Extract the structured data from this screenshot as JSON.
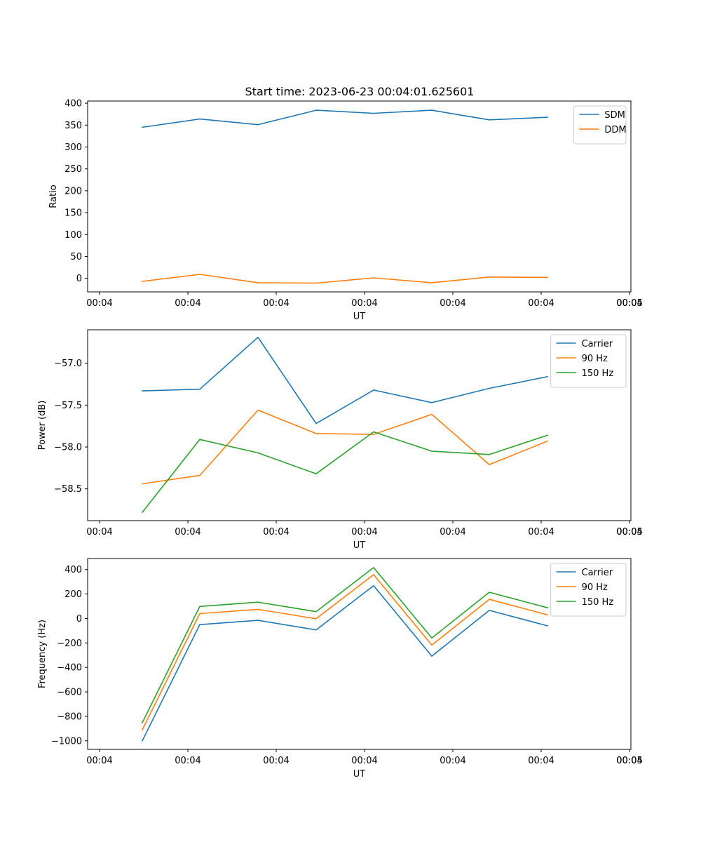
{
  "figure": {
    "title": "Start time: 2023-06-23 00:04:01.625601"
  },
  "chart_data": [
    {
      "type": "line",
      "xlabel": "UT",
      "ylabel": "Ratio",
      "x_tick_labels": [
        "00:04",
        "00:04",
        "00:04",
        "00:04",
        "00:04",
        "00:04",
        "00:04",
        "00:05"
      ],
      "y_ticks": [
        0,
        50,
        100,
        150,
        200,
        250,
        300,
        350,
        400
      ],
      "y_tick_labels": [
        "0",
        "50",
        "100",
        "150",
        "200",
        "250",
        "300",
        "350",
        "400"
      ],
      "ylim": [
        -31,
        405
      ],
      "legend_position": "upper-right",
      "grid": false,
      "series": [
        {
          "name": "SDM",
          "color": "#1f77b4",
          "values": [
            345,
            364,
            351,
            384,
            377,
            384,
            362,
            368
          ]
        },
        {
          "name": "DDM",
          "color": "#ff7f0e",
          "values": [
            -7,
            9,
            -10,
            -11,
            1,
            -10,
            3,
            2
          ]
        }
      ]
    },
    {
      "type": "line",
      "xlabel": "UT",
      "ylabel": "Power (dB)",
      "x_tick_labels": [
        "00:04",
        "00:04",
        "00:04",
        "00:04",
        "00:04",
        "00:04",
        "00:04",
        "00:05"
      ],
      "y_ticks": [
        -57.0,
        -57.5,
        -58.0,
        -58.5
      ],
      "y_tick_labels": [
        "−57.0",
        "−57.5",
        "−58.0",
        "−58.5"
      ],
      "ylim": [
        -58.88,
        -56.6
      ],
      "legend_position": "upper-right",
      "grid": false,
      "series": [
        {
          "name": "Carrier",
          "color": "#1f77b4",
          "values": [
            -57.33,
            -57.31,
            -56.69,
            -57.72,
            -57.32,
            -57.47,
            -57.3,
            -57.16
          ]
        },
        {
          "name": "90 Hz",
          "color": "#ff7f0e",
          "values": [
            -58.44,
            -58.34,
            -57.56,
            -57.84,
            -57.85,
            -57.61,
            -58.21,
            -57.93
          ]
        },
        {
          "name": "150 Hz",
          "color": "#2ca02c",
          "values": [
            -58.78,
            -57.91,
            -58.07,
            -58.32,
            -57.82,
            -58.05,
            -58.09,
            -57.86
          ]
        }
      ]
    },
    {
      "type": "line",
      "xlabel": "UT",
      "ylabel": "Frequency (Hz)",
      "x_tick_labels": [
        "00:04",
        "00:04",
        "00:04",
        "00:04",
        "00:04",
        "00:04",
        "00:04",
        "00:05"
      ],
      "y_ticks": [
        400,
        200,
        0,
        -200,
        -400,
        -600,
        -800,
        -1000
      ],
      "y_tick_labels": [
        "400",
        "200",
        "0",
        "−200",
        "−400",
        "−600",
        "−800",
        "−1000"
      ],
      "ylim": [
        -1070,
        490
      ],
      "legend_position": "upper-right",
      "grid": false,
      "series": [
        {
          "name": "Carrier",
          "color": "#1f77b4",
          "values": [
            -1000,
            -50,
            -15,
            -93,
            268,
            -308,
            66,
            -60
          ]
        },
        {
          "name": "90 Hz",
          "color": "#ff7f0e",
          "values": [
            -910,
            40,
            75,
            -2,
            358,
            -218,
            156,
            30
          ]
        },
        {
          "name": "150 Hz",
          "color": "#2ca02c",
          "values": [
            -852,
            98,
            133,
            56,
            416,
            -160,
            214,
            88
          ]
        }
      ]
    }
  ]
}
